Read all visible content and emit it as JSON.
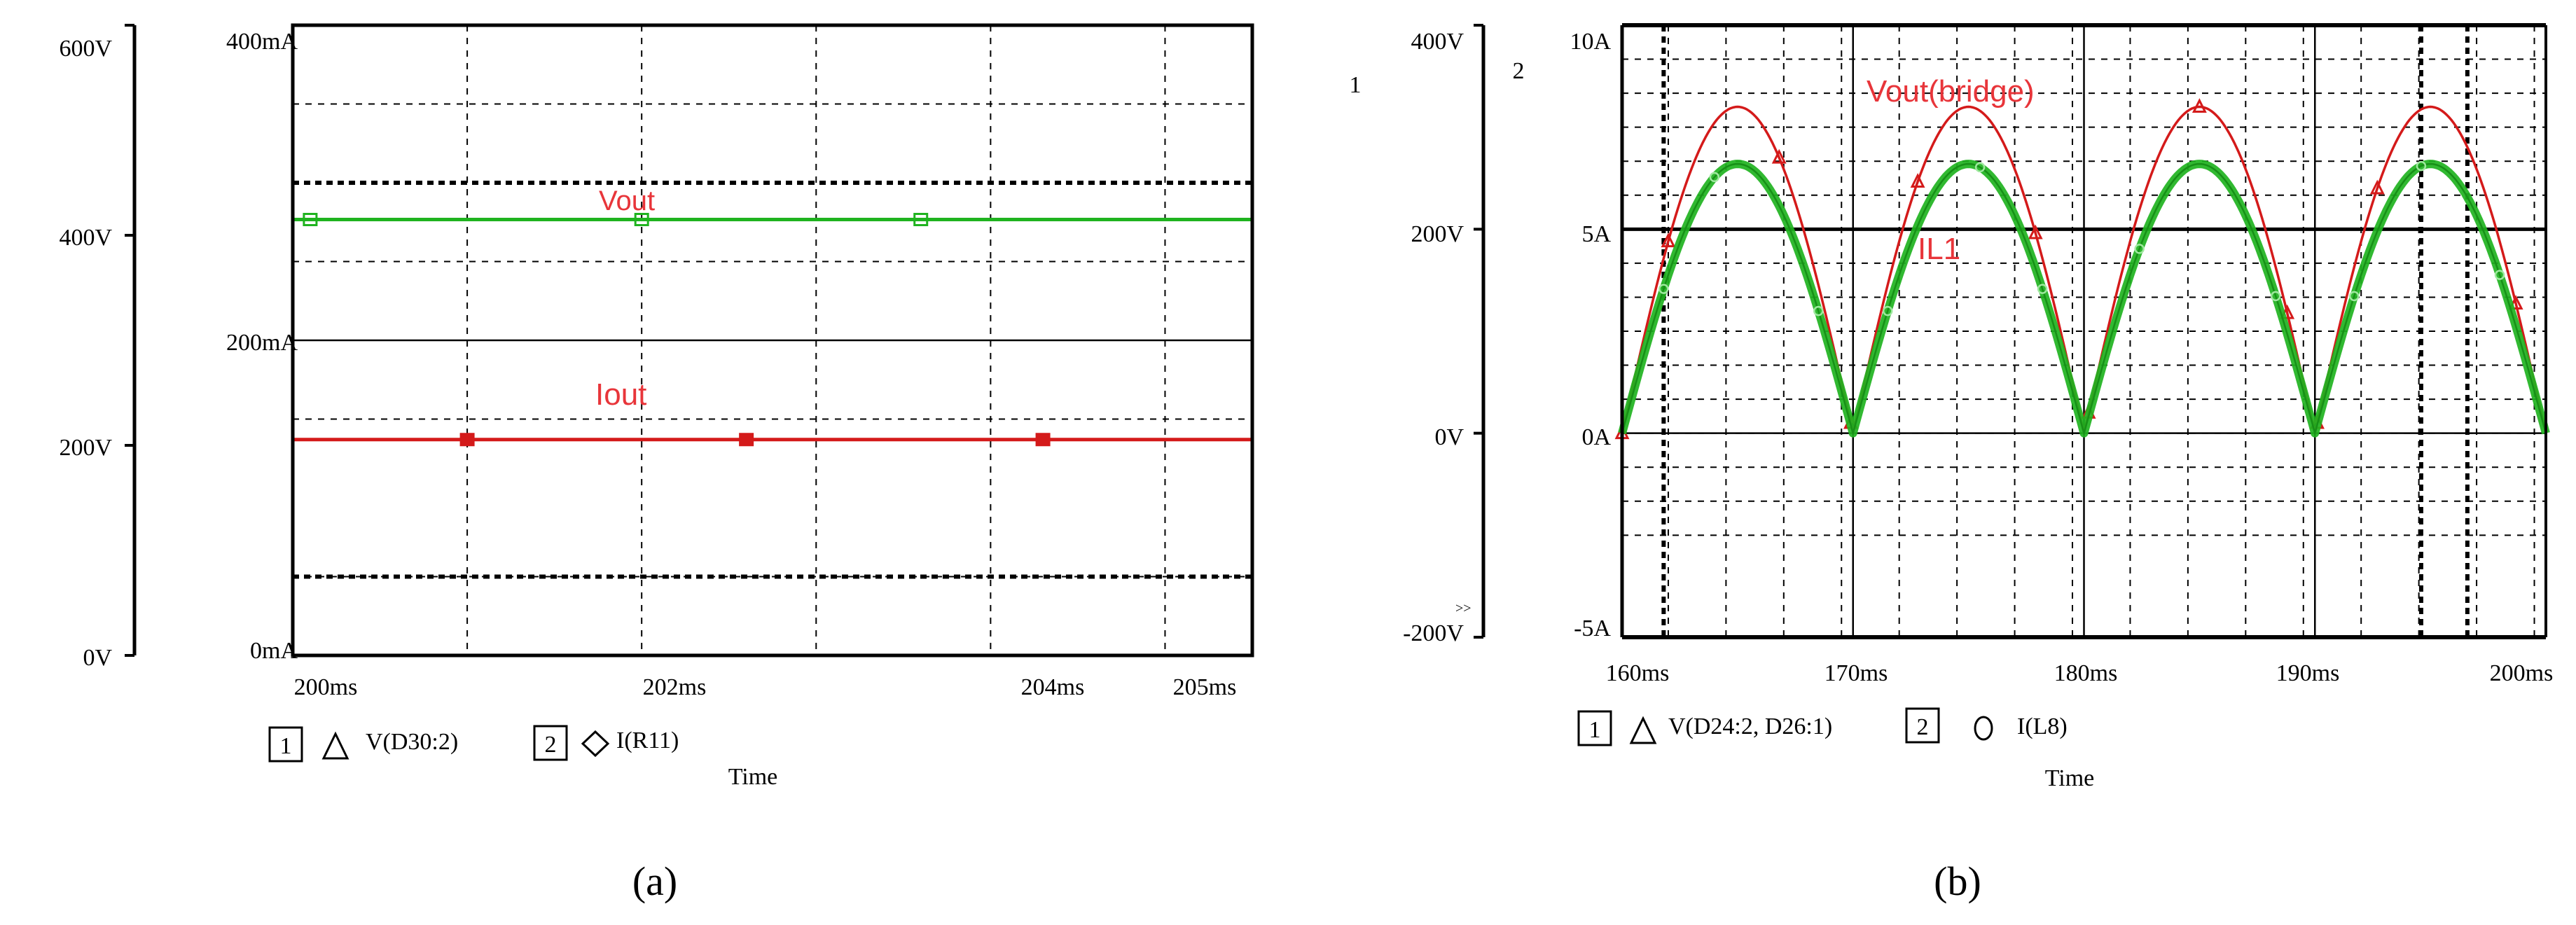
{
  "colors": {
    "red": "#d41a1a",
    "green": "#1fb31f",
    "grid": "#000000",
    "label_red": "#e8353a"
  },
  "chart_data": [
    {
      "panel_label": "(a)",
      "type": "line",
      "x_ticks": [
        "200ms",
        "202ms",
        "204ms",
        "205ms"
      ],
      "xlim": [
        200,
        205.5
      ],
      "y_axis_left1": {
        "ticks": [
          "0V",
          "200V",
          "400V",
          "600V"
        ],
        "lim": [
          0,
          600
        ]
      },
      "y_axis_left2": {
        "ticks": [
          "0mA",
          "200mA",
          "400mA"
        ],
        "lim": [
          0,
          400
        ]
      },
      "xlabel": "Time",
      "legend": [
        {
          "index": "1",
          "symbol": "triangle",
          "label": "V(D30:2)"
        },
        {
          "index": "2",
          "symbol": "diamond",
          "label": "I(R11)"
        }
      ],
      "series": [
        {
          "name": "Vout",
          "axis": 1,
          "color": "green",
          "x": [
            200,
            205.5
          ],
          "y": [
            415,
            415
          ]
        },
        {
          "name": "Iout",
          "axis": 2,
          "color": "red",
          "x": [
            200,
            205.5
          ],
          "y": [
            137,
            137
          ]
        }
      ],
      "reference_lines_axis1": [
        450,
        75
      ],
      "grid": true
    },
    {
      "panel_label": "(b)",
      "type": "line",
      "x_ticks": [
        "160ms",
        "170ms",
        "180ms",
        "190ms",
        "200ms"
      ],
      "xlim": [
        160,
        200
      ],
      "y_axis_left1": {
        "ticks": [
          "-200V",
          "0V",
          "200V",
          "400V"
        ],
        "lim": [
          -200,
          400
        ],
        "header": "1"
      },
      "y_axis_left2": {
        "ticks": [
          "-5A",
          "0A",
          "5A",
          "10A"
        ],
        "lim": [
          -5,
          10
        ],
        "header": "2"
      },
      "xlabel": "Time",
      "axis_overflow_mark": ">>",
      "legend": [
        {
          "index": "1",
          "symbol": "triangle",
          "label": "V(D24:2, D26:1)"
        },
        {
          "index": "2",
          "symbol": "circle",
          "label": "I(L8)"
        }
      ],
      "series": [
        {
          "name": "Vout(bridge)",
          "axis": 1,
          "color": "red",
          "shape": "rectified-sine",
          "period_ms": 10,
          "x_zero_ms": 160,
          "peak": 320
        },
        {
          "name": "IL1",
          "axis": 2,
          "color": "green",
          "shape": "rectified-sine",
          "period_ms": 10,
          "x_zero_ms": 160,
          "peak": 6.6
        }
      ],
      "grid": true
    }
  ]
}
